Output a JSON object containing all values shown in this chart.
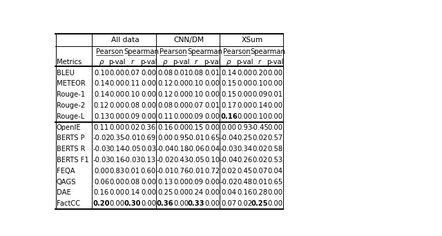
{
  "rows_group1": [
    [
      "BLEU",
      "0.10",
      "0.00",
      "0.07",
      "0.00",
      "0.08",
      "0.01",
      "0.08",
      "0.01",
      "0.14",
      "0.00",
      "0.20",
      "0.00"
    ],
    [
      "METEOR",
      "0.14",
      "0.00",
      "0.11",
      "0.00",
      "0.12",
      "0.00",
      "0.10",
      "0.00",
      "0.15",
      "0.00",
      "0.10",
      "0.00"
    ],
    [
      "Rouge-1",
      "0.14",
      "0.00",
      "0.10",
      "0.00",
      "0.12",
      "0.00",
      "0.10",
      "0.00",
      "0.15",
      "0.00",
      "0.09",
      "0.01"
    ],
    [
      "Rouge-2",
      "0.12",
      "0.00",
      "0.08",
      "0.00",
      "0.08",
      "0.00",
      "0.07",
      "0.01",
      "0.17",
      "0.00",
      "0.14",
      "0.00"
    ],
    [
      "Rouge-L",
      "0.13",
      "0.00",
      "0.09",
      "0.00",
      "0.11",
      "0.00",
      "0.09",
      "0.00",
      "0.16",
      "0.00",
      "0.10",
      "0.00"
    ]
  ],
  "rows_group2": [
    [
      "OpenIE",
      "0.11",
      "0.00",
      "0.02",
      "0.36",
      "0.16",
      "0.00",
      "0.15",
      "0.00",
      "0.00",
      "0.93",
      "-0.45",
      "0.00"
    ],
    [
      "BERTS P",
      "-0.02",
      "0.35",
      "-0.01",
      "0.69",
      "0.00",
      "0.95",
      "-0.01",
      "0.65",
      "-0.04",
      "0.25",
      "0.02",
      "0.57"
    ],
    [
      "BERTS R",
      "-0.03",
      "0.14",
      "-0.05",
      "0.03",
      "-0.04",
      "0.18",
      "-0.06",
      "0.04",
      "-0.03",
      "0.34",
      "0.02",
      "0.58"
    ],
    [
      "BERTS F1",
      "-0.03",
      "0.16",
      "-0.03",
      "0.13",
      "-0.02",
      "0.43",
      "-0.05",
      "0.10",
      "-0.04",
      "0.26",
      "0.02",
      "0.53"
    ],
    [
      "FEQA",
      "0.00",
      "0.83",
      "0.01",
      "0.60",
      "-0.01",
      "0.76",
      "-0.01",
      "0.72",
      "0.02",
      "0.45",
      "0.07",
      "0.04"
    ],
    [
      "QAGS",
      "0.06",
      "0.00",
      "0.08",
      "0.00",
      "0.13",
      "0.00",
      "0.09",
      "0.00",
      "-0.02",
      "0.48",
      "0.01",
      "0.65"
    ],
    [
      "DAE",
      "0.16",
      "0.00",
      "0.14",
      "0.00",
      "0.25",
      "0.00",
      "0.24",
      "0.00",
      "0.04",
      "0.16",
      "0.28",
      "0.00"
    ],
    [
      "FactCC",
      "0.20",
      "0.00",
      "0.30",
      "0.00",
      "0.36",
      "0.00",
      "0.33",
      "0.00",
      "0.07",
      "0.02",
      "0.25",
      "0.00"
    ]
  ],
  "bold_cells_group1": {
    "Rouge-L": [
      9
    ]
  },
  "bold_cells_group2": {
    "FactCC": [
      1,
      3,
      5,
      7,
      11
    ]
  },
  "bg_color": "#ffffff",
  "text_color": "#000000",
  "font_size": 7.2
}
